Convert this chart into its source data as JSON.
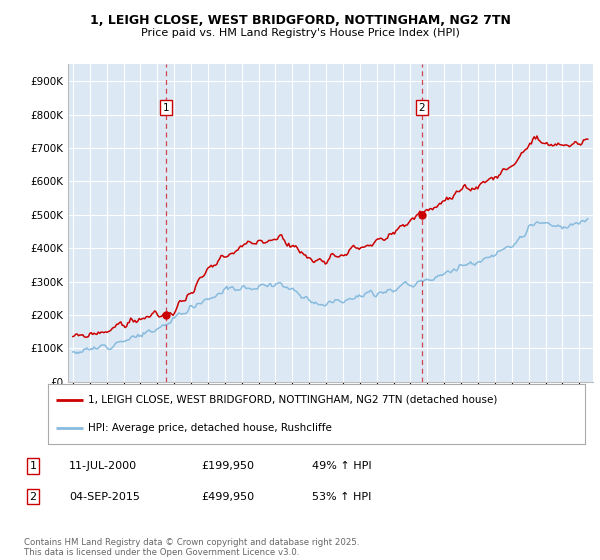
{
  "title_line1": "1, LEIGH CLOSE, WEST BRIDGFORD, NOTTINGHAM, NG2 7TN",
  "title_line2": "Price paid vs. HM Land Registry's House Price Index (HPI)",
  "background_color": "#ffffff",
  "plot_bg_color": "#dce9f5",
  "grid_color": "#ffffff",
  "ylim": [
    0,
    950000
  ],
  "yticks": [
    0,
    100000,
    200000,
    300000,
    400000,
    500000,
    600000,
    700000,
    800000,
    900000
  ],
  "ytick_labels": [
    "£0",
    "£100K",
    "£200K",
    "£300K",
    "£400K",
    "£500K",
    "£600K",
    "£700K",
    "£800K",
    "£900K"
  ],
  "sale1_date_num": 2000.53,
  "sale1_price": 199950,
  "sale1_label": "1",
  "sale2_date_num": 2015.67,
  "sale2_price": 499950,
  "sale2_label": "2",
  "legend_line1": "1, LEIGH CLOSE, WEST BRIDGFORD, NOTTINGHAM, NG2 7TN (detached house)",
  "legend_line2": "HPI: Average price, detached house, Rushcliffe",
  "table_row1": [
    "1",
    "11-JUL-2000",
    "£199,950",
    "49% ↑ HPI"
  ],
  "table_row2": [
    "2",
    "04-SEP-2015",
    "£499,950",
    "53% ↑ HPI"
  ],
  "footer": "Contains HM Land Registry data © Crown copyright and database right 2025.\nThis data is licensed under the Open Government Licence v3.0.",
  "red_color": "#cc0000",
  "blue_line_color": "#88bbdd",
  "xmin": 1994.7,
  "xmax": 2025.8
}
